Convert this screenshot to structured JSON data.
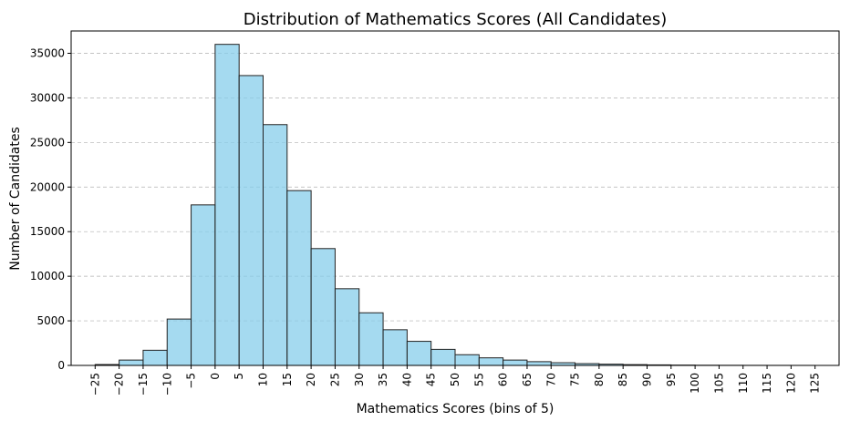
{
  "chart_data": {
    "type": "bar",
    "title": "Distribution of Mathematics Scores (All Candidates)",
    "xlabel": "Mathematics Scores (bins of 5)",
    "ylabel": "Number of Candidates",
    "bin_width": 5,
    "bin_starts": [
      -25,
      -20,
      -15,
      -10,
      -5,
      0,
      5,
      10,
      15,
      20,
      25,
      30,
      35,
      40,
      45,
      50,
      55,
      60,
      65,
      70,
      75,
      80,
      85,
      90,
      95,
      100,
      105,
      110,
      115,
      120
    ],
    "values": [
      100,
      600,
      1700,
      5200,
      18000,
      36000,
      32500,
      27000,
      19600,
      13100,
      8600,
      5900,
      4000,
      2700,
      1800,
      1200,
      850,
      600,
      420,
      300,
      200,
      140,
      90,
      60,
      35,
      20,
      12,
      8,
      5,
      3
    ],
    "xlim": [
      -30,
      130
    ],
    "ylim": [
      0,
      37500
    ],
    "x_ticks": [
      -25,
      -20,
      -15,
      -10,
      -5,
      0,
      5,
      10,
      15,
      20,
      25,
      30,
      35,
      40,
      45,
      50,
      55,
      60,
      65,
      70,
      75,
      80,
      85,
      90,
      95,
      100,
      105,
      110,
      115,
      120,
      125
    ],
    "x_tick_labels": [
      "−25",
      "−20",
      "−15",
      "−10",
      "−5",
      "0",
      "5",
      "10",
      "15",
      "20",
      "25",
      "30",
      "35",
      "40",
      "45",
      "50",
      "55",
      "60",
      "65",
      "70",
      "75",
      "80",
      "85",
      "90",
      "95",
      "100",
      "105",
      "110",
      "115",
      "120",
      "125"
    ],
    "y_ticks": [
      0,
      5000,
      10000,
      15000,
      20000,
      25000,
      30000,
      35000
    ],
    "y_tick_labels": [
      "0",
      "5000",
      "10000",
      "15000",
      "20000",
      "25000",
      "30000",
      "35000"
    ],
    "grid": "y-dashed",
    "bar_color": "#87ceeb",
    "edge_color": "#222222"
  }
}
